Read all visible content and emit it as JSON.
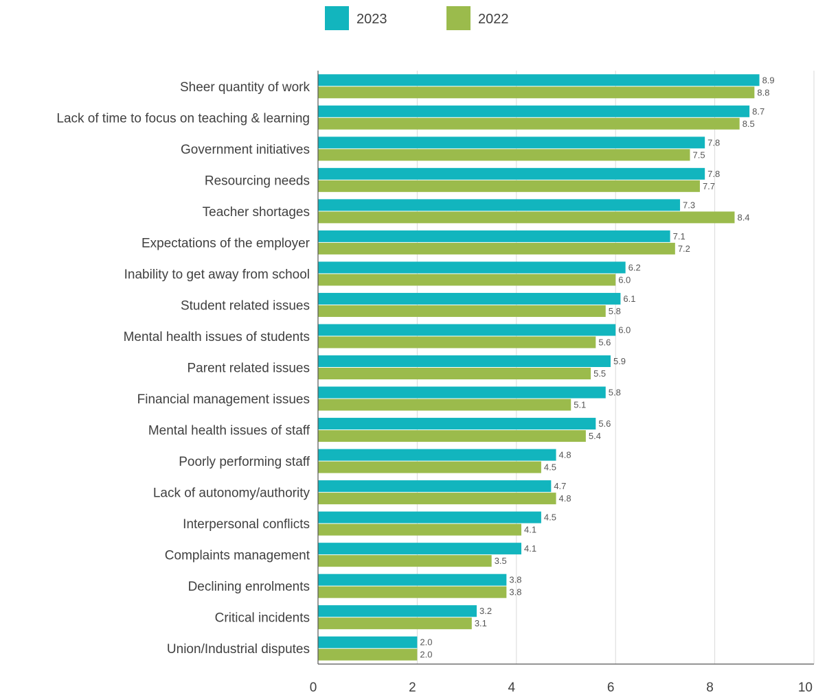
{
  "chart_data": {
    "type": "bar",
    "orientation": "horizontal",
    "categories": [
      "Sheer quantity of work",
      "Lack of time to focus on teaching & learning",
      "Government initiatives",
      "Resourcing needs",
      "Teacher shortages",
      "Expectations of the employer",
      "Inability to get away from school",
      "Student related issues",
      "Mental health issues of students",
      "Parent related issues",
      "Financial management issues",
      "Mental health issues of staff",
      "Poorly performing staff",
      "Lack of autonomy/authority",
      "Interpersonal conflicts",
      "Complaints management",
      "Declining enrolments",
      "Critical incidents",
      "Union/Industrial disputes"
    ],
    "series": [
      {
        "name": "2023",
        "color": "#12b5be",
        "values": [
          8.9,
          8.7,
          7.8,
          7.8,
          7.3,
          7.1,
          6.2,
          6.1,
          6.0,
          5.9,
          5.8,
          5.6,
          4.8,
          4.7,
          4.5,
          4.1,
          3.8,
          3.2,
          2.0
        ],
        "labels": [
          "8.9",
          "8.7",
          "7.8",
          "7.8",
          "7.3",
          "7.1",
          "6.2",
          "6.1",
          "6.0",
          "5.9",
          "5.8",
          "5.6",
          "4.8",
          "4.7",
          "4.5",
          "4.1",
          "3.8",
          "3.2",
          "2.0"
        ]
      },
      {
        "name": "2022",
        "color": "#9bbb4c",
        "values": [
          8.8,
          8.5,
          7.5,
          7.7,
          8.4,
          7.2,
          6.0,
          5.8,
          5.6,
          5.5,
          5.1,
          5.4,
          4.5,
          4.8,
          4.1,
          3.5,
          3.8,
          3.1,
          2.0
        ],
        "labels": [
          "8.8",
          "8.5",
          "7.5",
          "7.7",
          "8.4",
          "7.2",
          "6.0",
          "5.8",
          "5.6",
          "5.5",
          "5.1",
          "5.4",
          "4.5",
          "4.8",
          "4.1",
          "3.5",
          "3.8",
          "3.1",
          "2.0"
        ]
      }
    ],
    "xlim": [
      0,
      10
    ],
    "xticks": [
      "0",
      "2",
      "4",
      "6",
      "8",
      "10"
    ],
    "grid": true,
    "legend_position": "top-center"
  }
}
